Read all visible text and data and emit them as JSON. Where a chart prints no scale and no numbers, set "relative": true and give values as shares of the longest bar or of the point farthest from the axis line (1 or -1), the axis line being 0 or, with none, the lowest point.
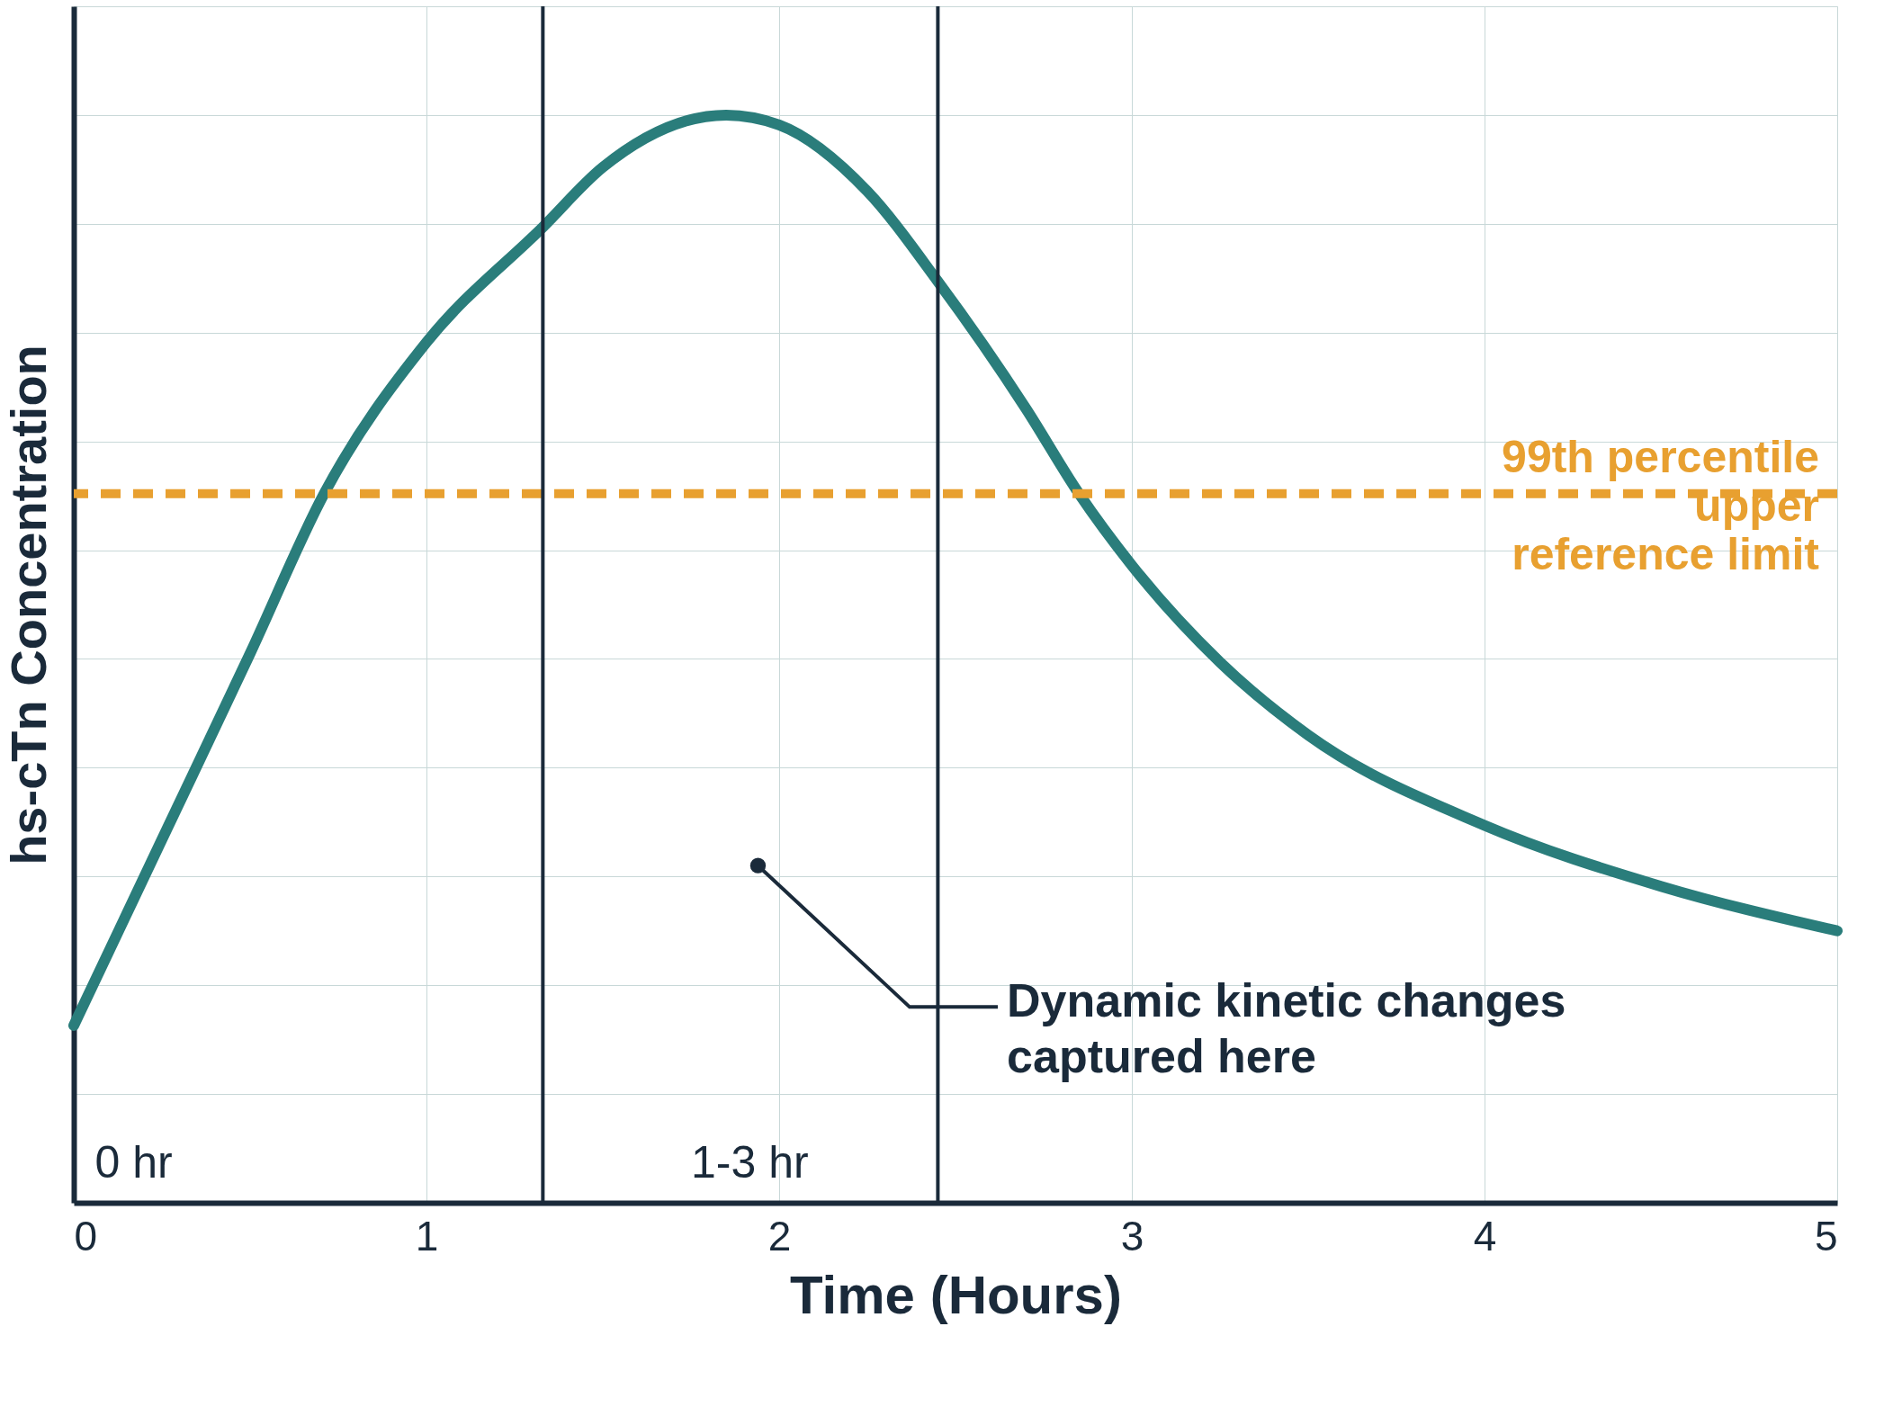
{
  "chart_data": {
    "type": "line",
    "relative": true,
    "xlabel": "Time (Hours)",
    "ylabel": "hs-cTn Concentration",
    "x": [
      0,
      0.25,
      0.5,
      0.71,
      1,
      1.33,
      1.5,
      1.85,
      2,
      2.25,
      2.45,
      2.7,
      2.85,
      3,
      3.25,
      3.5,
      4,
      4.5,
      5
    ],
    "series": [
      {
        "color": "#2a7d7b",
        "values": [
          0.163,
          0.334,
          0.505,
          0.652,
          0.791,
          0.897,
          0.952,
          1,
          0.991,
          0.93,
          0.847,
          0.73,
          0.652,
          0.586,
          0.497,
          0.43,
          0.347,
          0.291,
          0.25
        ]
      }
    ],
    "xlim": [
      0,
      5
    ],
    "xticks": [
      0,
      1,
      2,
      3,
      4,
      5
    ],
    "grid": true,
    "marker": "none",
    "line_style": "solid",
    "ref_lines": [
      {
        "axis": "y",
        "value": 0.652,
        "label": "99th percentile\nupper\nreference limit",
        "color": "#e8a030",
        "line_style": "dashed"
      },
      {
        "axis": "x",
        "value": 1.33,
        "color": "#1a2a3a",
        "line_style": "solid"
      },
      {
        "axis": "x",
        "value": 2.45,
        "color": "#1a2a3a",
        "line_style": "solid"
      }
    ],
    "annotations": [
      "0 hr",
      "1-3 hr",
      {
        "text": "Dynamic kinetic changes\ncaptured here",
        "x": 1.94,
        "y": 0.31
      }
    ]
  }
}
